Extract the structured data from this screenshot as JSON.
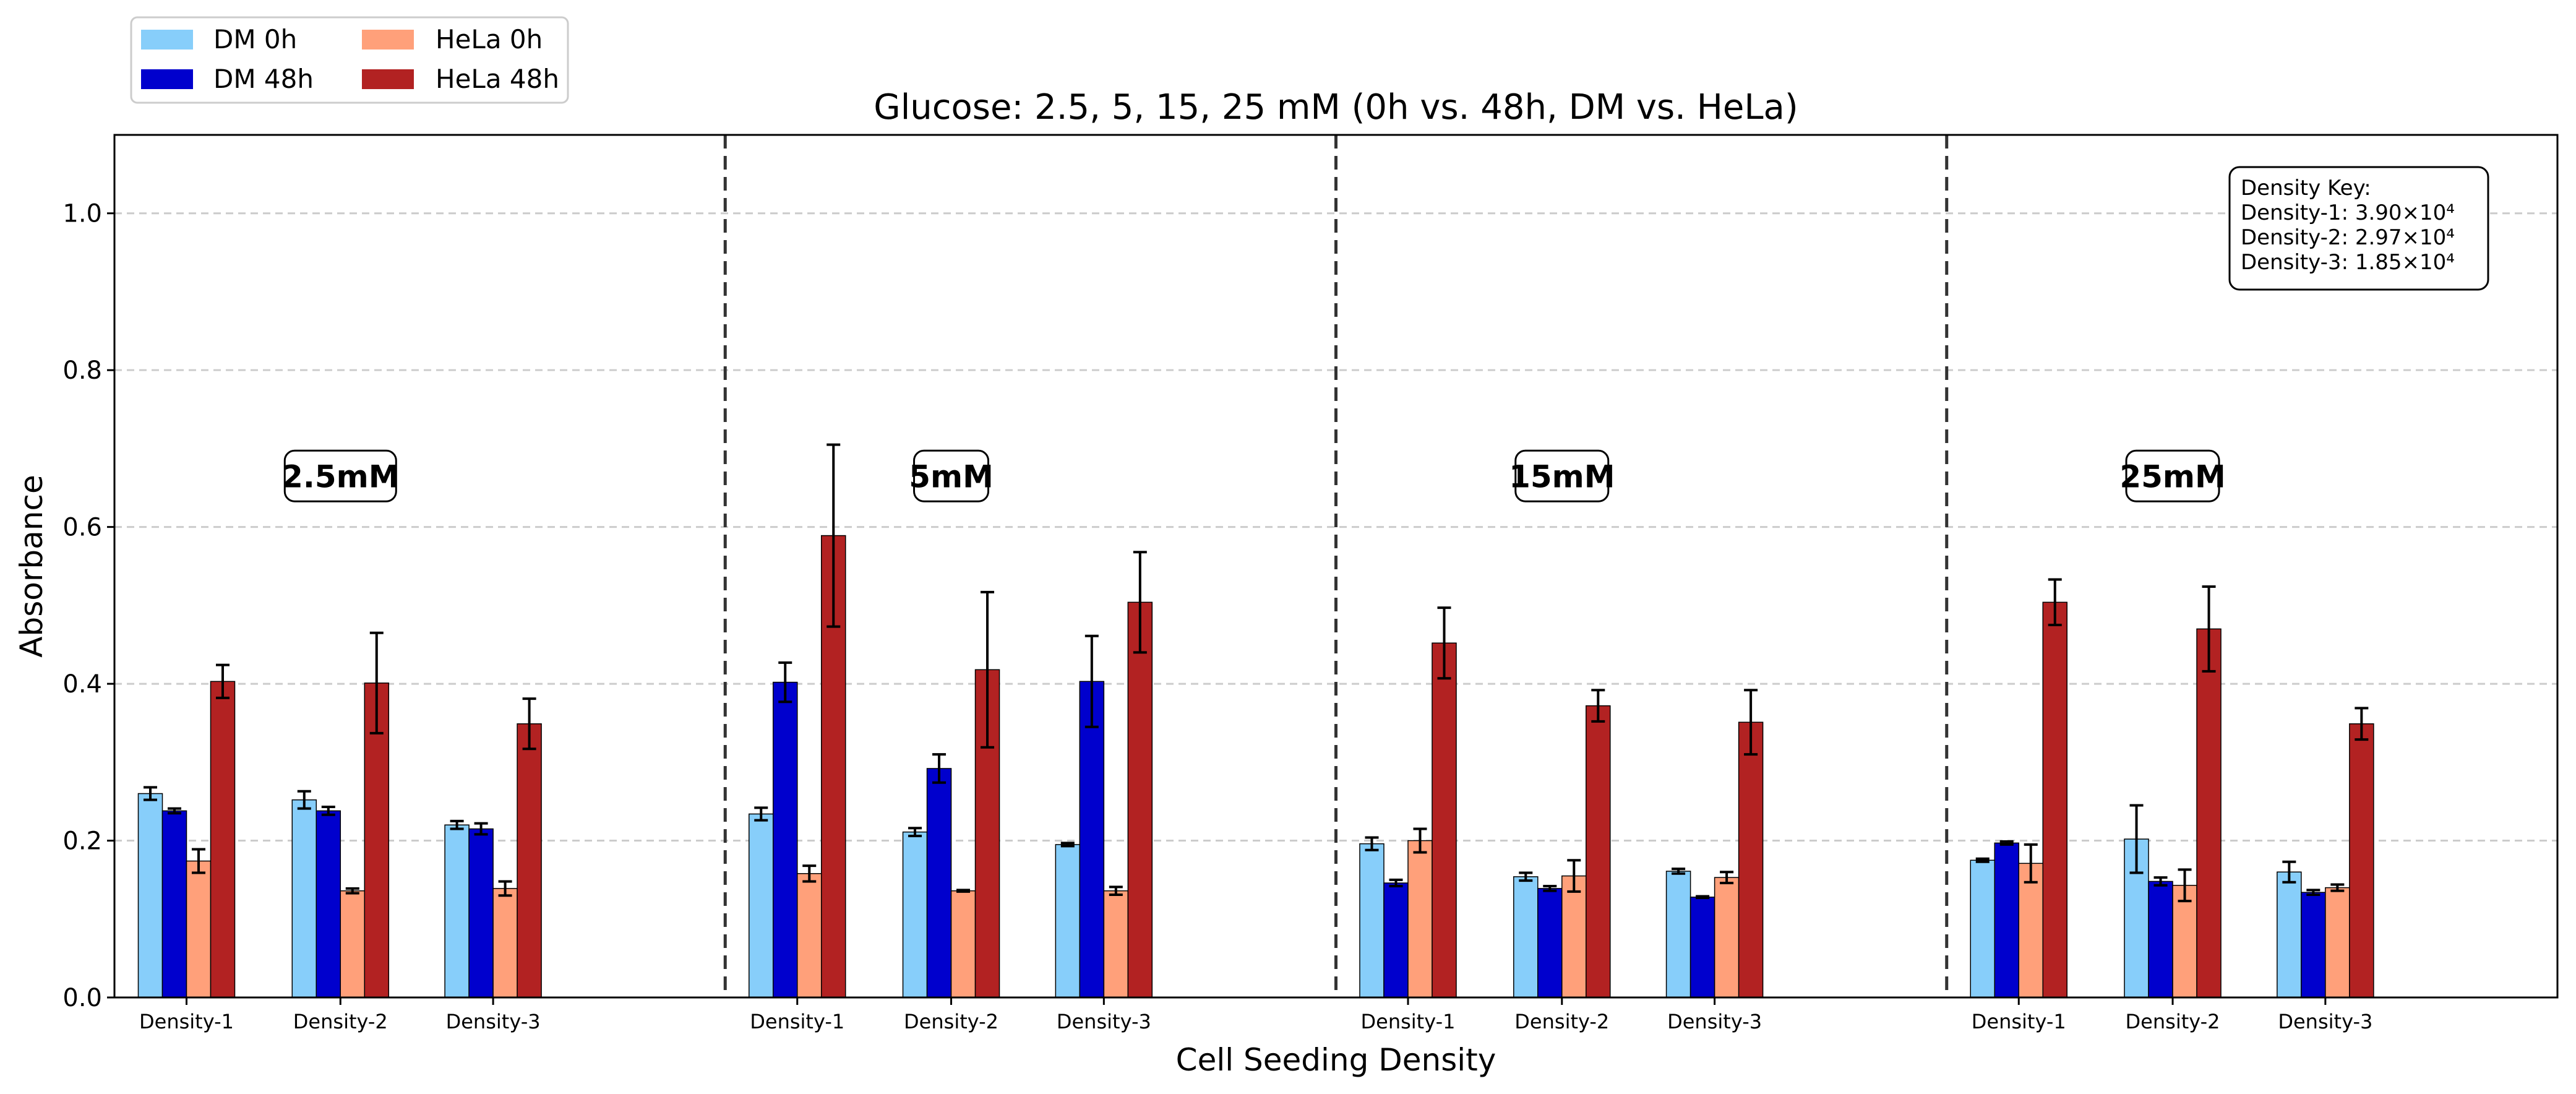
{
  "chart_data": {
    "type": "bar",
    "title": "Glucose: 2.5, 5, 15, 25 mM (0h vs. 48h, DM vs. HeLa)",
    "xlabel": "Cell Seeding Density",
    "ylabel": "Absorbance",
    "ylim": [
      0,
      1.1
    ],
    "yticks": [
      "0.0",
      "0.2",
      "0.4",
      "0.6",
      "0.8",
      "1.0"
    ],
    "grid": "horizontal dashed",
    "legend_position": "top-left, outside axes",
    "panels": [
      {
        "label": "2.5mM",
        "categories": [
          "Density-1",
          "Density-2",
          "Density-3"
        ]
      },
      {
        "label": "5mM",
        "categories": [
          "Density-1",
          "Density-2",
          "Density-3"
        ]
      },
      {
        "label": "15mM",
        "categories": [
          "Density-1",
          "Density-2",
          "Density-3"
        ]
      },
      {
        "label": "25mM",
        "categories": [
          "Density-1",
          "Density-2",
          "Density-3"
        ]
      }
    ],
    "series": [
      {
        "name": "DM 0h",
        "color": "#87CEFA",
        "values": [
          0.26,
          0.252,
          0.22,
          0.234,
          0.211,
          0.195,
          0.196,
          0.154,
          0.161,
          0.175,
          0.202,
          0.16
        ],
        "errors": [
          0.008,
          0.011,
          0.005,
          0.008,
          0.005,
          0.002,
          0.008,
          0.005,
          0.003,
          0.002,
          0.043,
          0.013
        ]
      },
      {
        "name": "DM 48h",
        "color": "#0000CD",
        "values": [
          0.238,
          0.238,
          0.215,
          0.402,
          0.292,
          0.403,
          0.146,
          0.139,
          0.128,
          0.197,
          0.148,
          0.134
        ],
        "errors": [
          0.003,
          0.005,
          0.007,
          0.025,
          0.018,
          0.058,
          0.004,
          0.003,
          0.001,
          0.002,
          0.005,
          0.003
        ]
      },
      {
        "name": "HeLa 0h",
        "color": "#FFA07A",
        "values": [
          0.174,
          0.136,
          0.139,
          0.158,
          0.136,
          0.136,
          0.2,
          0.155,
          0.153,
          0.171,
          0.143,
          0.14
        ],
        "errors": [
          0.015,
          0.003,
          0.009,
          0.01,
          0.001,
          0.005,
          0.015,
          0.02,
          0.007,
          0.024,
          0.02,
          0.004
        ]
      },
      {
        "name": "HeLa 48h",
        "color": "#B22222",
        "values": [
          0.403,
          0.401,
          0.349,
          0.589,
          0.418,
          0.504,
          0.452,
          0.372,
          0.351,
          0.504,
          0.47,
          0.349
        ],
        "errors": [
          0.021,
          0.064,
          0.032,
          0.116,
          0.099,
          0.064,
          0.045,
          0.02,
          0.041,
          0.029,
          0.054,
          0.02
        ]
      }
    ],
    "annotation": {
      "title": "Density Key:",
      "lines": [
        "Density-1: 3.90×10⁴",
        "Density-2: 2.97×10⁴",
        "Density-3: 1.85×10⁴"
      ]
    }
  }
}
